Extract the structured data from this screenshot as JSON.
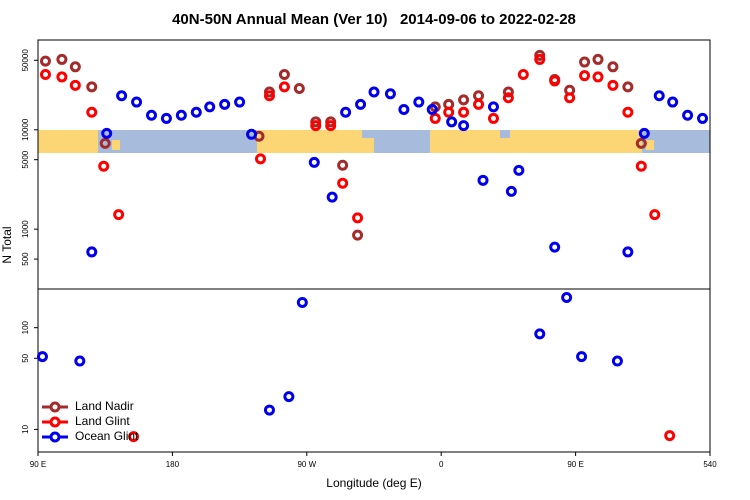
{
  "chart_data": [
    {
      "type": "scatter",
      "title": "40N-50N Annual Mean (Ver 10)   2014-09-06 to 2022-02-28",
      "ylabel": "N Total",
      "log_scale": true,
      "xlim": [
        90,
        540
      ],
      "ylim": [
        250,
        80000
      ],
      "yticks": [
        500,
        1000,
        5000,
        10000,
        50000
      ],
      "series": [
        {
          "color": "#a52a2a",
          "x": [
            95,
            106,
            115,
            126,
            135,
            238,
            245,
            255,
            265,
            276,
            286,
            294,
            304,
            356,
            365,
            375,
            385,
            405,
            426,
            436,
            446,
            456,
            465,
            475,
            485,
            494
          ],
          "values": [
            49000,
            51000,
            43000,
            27000,
            7300,
            8600,
            24000,
            36000,
            26000,
            12000,
            12000,
            4400,
            870,
            17000,
            18000,
            20000,
            22000,
            24000,
            56000,
            32000,
            25000,
            48000,
            51000,
            43000,
            27000,
            7300
          ]
        },
        {
          "color": "#ff0000",
          "x": [
            95,
            106,
            115,
            126,
            134,
            144,
            239,
            245,
            255,
            276,
            286,
            294,
            304,
            356,
            365,
            375,
            385,
            395,
            405,
            415,
            426,
            436,
            446,
            456,
            465,
            475,
            485,
            494,
            503
          ],
          "values": [
            36000,
            34000,
            28000,
            15000,
            4300,
            1400,
            5100,
            22000,
            27000,
            11000,
            11000,
            2900,
            1300,
            13000,
            15000,
            15000,
            18000,
            13000,
            21000,
            36000,
            51000,
            31000,
            21000,
            35000,
            34000,
            28000,
            15000,
            4300,
            1400
          ]
        },
        {
          "color": "#0000ee",
          "x": [
            126,
            136,
            146,
            156,
            166,
            176,
            186,
            196,
            205,
            215,
            225,
            233,
            275,
            287,
            296,
            306,
            315,
            326,
            335,
            345,
            354,
            367,
            375,
            388,
            395,
            407,
            412,
            436,
            485,
            496,
            506,
            515,
            525,
            535
          ],
          "values": [
            590,
            9200,
            22000,
            19000,
            14000,
            13000,
            14000,
            15000,
            17000,
            18000,
            19000,
            9000,
            4700,
            2100,
            15000,
            18000,
            24000,
            23000,
            16000,
            19000,
            16000,
            12000,
            11000,
            3100,
            17000,
            2400,
            3900,
            660,
            590,
            9200,
            22000,
            19000,
            14000,
            13000
          ]
        }
      ]
    },
    {
      "type": "scatter",
      "xlabel": "Longitude (deg E)",
      "log_scale": true,
      "xlim": [
        90,
        540
      ],
      "ylim": [
        6,
        240
      ],
      "xticks": [
        {
          "value": 90,
          "label": "90 E"
        },
        180,
        {
          "value": 270,
          "label": "90 W"
        },
        {
          "value": 360,
          "label": "0"
        },
        {
          "value": 450,
          "label": "90 E"
        },
        540
      ],
      "yticks": [
        10,
        50,
        100
      ],
      "legend": "lower left",
      "series": [
        {
          "name": "Land Nadir",
          "color": "#a52a2a",
          "x": [],
          "values": []
        },
        {
          "name": "Land Glint",
          "color": "#ff0000",
          "x": [
            154,
            513
          ],
          "values": [
            8.5,
            8.7
          ]
        },
        {
          "name": "Ocean Glint",
          "color": "#0000ee",
          "x": [
            93,
            118,
            245,
            258,
            267,
            426,
            444,
            454,
            478
          ],
          "values": [
            52,
            47,
            15.5,
            21,
            177,
            87,
            198,
            52,
            47
          ]
        }
      ]
    }
  ]
}
